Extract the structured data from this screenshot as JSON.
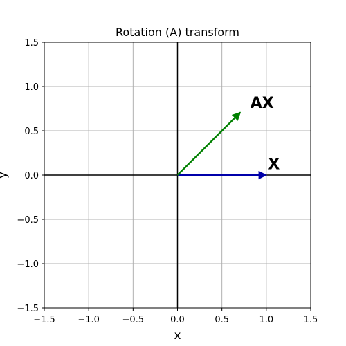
{
  "chart_data": {
    "type": "line",
    "title": "Rotation (A) transform",
    "xlabel": "x",
    "ylabel": "y",
    "xlim": [
      -1.5,
      1.5
    ],
    "ylim": [
      -1.5,
      1.5
    ],
    "xticks": [
      -1.5,
      -1.0,
      -0.5,
      0.0,
      0.5,
      1.0,
      1.5
    ],
    "yticks": [
      -1.5,
      -1.0,
      -0.5,
      0.0,
      0.5,
      1.0,
      1.5
    ],
    "xtick_labels": [
      "−1.5",
      "−1.0",
      "−0.5",
      "0.0",
      "0.5",
      "1.0",
      "1.5"
    ],
    "ytick_labels": [
      "−1.5",
      "−1.0",
      "−0.5",
      "0.0",
      "0.5",
      "1.0",
      "1.5"
    ],
    "grid": true,
    "vectors": [
      {
        "name": "X",
        "label": "X",
        "start": [
          0,
          0
        ],
        "end": [
          1.0,
          0.0
        ],
        "color": "#0000aa",
        "label_pos": [
          1.02,
          0.13
        ]
      },
      {
        "name": "AX",
        "label": "AX",
        "start": [
          0,
          0
        ],
        "end": [
          0.707,
          0.707
        ],
        "color": "#008000",
        "label_pos": [
          0.82,
          0.82
        ]
      }
    ],
    "origin_axes_color": "#000000",
    "grid_color": "#b0b0b0"
  }
}
